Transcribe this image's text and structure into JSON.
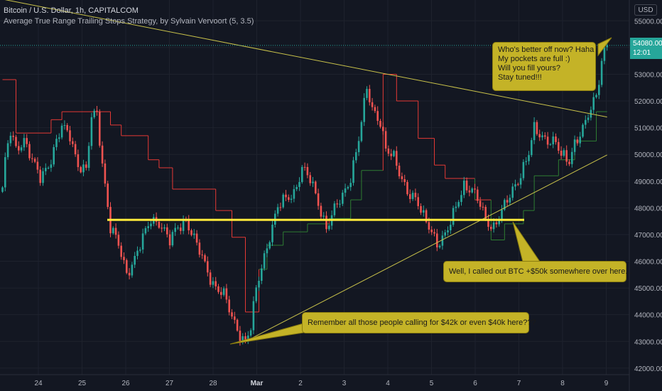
{
  "header": {
    "symbol_line": "Bitcoin / U.S. Dollar, 1h, CAPITALCOM",
    "study_line": "Average True Range Trailing Stops Strategy, by Sylvain Vervoort (5, 3.5)"
  },
  "currency_button": "USD",
  "last_price": {
    "price": "54080.00",
    "countdown": "12:01"
  },
  "annotations": {
    "top_right": [
      "Who's better off now? Haha",
      "My pockets are full :)",
      "Will you fill yours?",
      "Stay tuned!!!"
    ],
    "middle_right": "Well, I called out BTC +$50k somewhere over here...",
    "bottom": "Remember all those people calling for $42k or even $40k here???"
  },
  "colors": {
    "background": "#131722",
    "up": "#26a69a",
    "down": "#ef5350",
    "stop_red": "#e53935",
    "stop_green": "#2e7d32",
    "support_line": "#ffeb3b",
    "trend_line": "#c9c24a",
    "annotation_bg": "#c4b327"
  },
  "chart_data": {
    "type": "candlestick",
    "ylim": [
      41700,
      55700
    ],
    "ytick_values": [
      42000,
      43000,
      44000,
      45000,
      46000,
      47000,
      48000,
      49000,
      50000,
      51000,
      52000,
      53000,
      54000,
      55000
    ],
    "yticks": [
      "42000.00",
      "43000.00",
      "44000.00",
      "45000.00",
      "46000.00",
      "47000.00",
      "48000.00",
      "49000.00",
      "50000.00",
      "51000.00",
      "52000.00",
      "53000.00",
      "54000.00",
      "55000.00"
    ],
    "xticks": [
      "24",
      "25",
      "26",
      "27",
      "28",
      "Mar",
      "2",
      "3",
      "4",
      "5",
      "6",
      "7",
      "8",
      "9"
    ],
    "price_path": [
      [
        0,
        48600
      ],
      [
        1.2,
        49900
      ],
      [
        3,
        50900
      ],
      [
        5,
        50300
      ],
      [
        8,
        50500
      ],
      [
        11,
        49700
      ],
      [
        14,
        49200
      ],
      [
        18,
        49800
      ],
      [
        22,
        51000
      ],
      [
        25,
        50800
      ],
      [
        28,
        49600
      ],
      [
        31,
        49300
      ],
      [
        33,
        51400
      ],
      [
        35,
        51600
      ],
      [
        37,
        49700
      ],
      [
        40,
        47200
      ],
      [
        43,
        46600
      ],
      [
        46,
        45600
      ],
      [
        49,
        46100
      ],
      [
        52,
        46800
      ],
      [
        55,
        47600
      ],
      [
        58,
        47500
      ],
      [
        62,
        46700
      ],
      [
        65,
        47300
      ],
      [
        68,
        47600
      ],
      [
        71,
        46800
      ],
      [
        74,
        46100
      ],
      [
        78,
        45200
      ],
      [
        82,
        44700
      ],
      [
        85,
        43900
      ],
      [
        88,
        43300
      ],
      [
        90,
        43000
      ],
      [
        92,
        43500
      ],
      [
        94,
        44900
      ],
      [
        96,
        45800
      ],
      [
        99,
        47000
      ],
      [
        102,
        48000
      ],
      [
        105,
        48300
      ],
      [
        108,
        48600
      ],
      [
        111,
        49500
      ],
      [
        114,
        49000
      ],
      [
        117,
        48200
      ],
      [
        120,
        47300
      ],
      [
        123,
        47900
      ],
      [
        126,
        48400
      ],
      [
        129,
        49200
      ],
      [
        132,
        50600
      ],
      [
        134,
        51800
      ],
      [
        135,
        52400
      ],
      [
        137,
        51700
      ],
      [
        140,
        51300
      ],
      [
        142,
        50200
      ],
      [
        145,
        49800
      ],
      [
        147,
        49300
      ],
      [
        150,
        48700
      ],
      [
        153,
        48300
      ],
      [
        156,
        47600
      ],
      [
        159,
        47200
      ],
      [
        161,
        46700
      ],
      [
        164,
        46900
      ],
      [
        166,
        47400
      ],
      [
        169,
        48400
      ],
      [
        171,
        48900
      ],
      [
        174,
        48600
      ],
      [
        177,
        48100
      ],
      [
        179,
        47600
      ],
      [
        182,
        47300
      ],
      [
        186,
        48000
      ],
      [
        189,
        48700
      ],
      [
        192,
        49300
      ],
      [
        195,
        50000
      ],
      [
        197,
        50900
      ],
      [
        200,
        50700
      ],
      [
        202,
        50600
      ],
      [
        205,
        50400
      ],
      [
        207,
        49900
      ],
      [
        210,
        49800
      ],
      [
        212,
        50500
      ],
      [
        215,
        50900
      ],
      [
        217,
        51400
      ],
      [
        219,
        51900
      ],
      [
        221,
        52800
      ],
      [
        222,
        53600
      ],
      [
        223,
        53900
      ],
      [
        224,
        54080
      ]
    ],
    "stop_levels": [
      [
        0,
        52800
      ],
      [
        5,
        52800
      ],
      [
        5.01,
        50800
      ],
      [
        18,
        50800
      ],
      [
        18.01,
        51300
      ],
      [
        22,
        51300
      ],
      [
        22.01,
        51600
      ],
      [
        40,
        51600
      ],
      [
        40.01,
        51100
      ],
      [
        44,
        51100
      ],
      [
        44.01,
        50700
      ],
      [
        54,
        50700
      ],
      [
        54.01,
        49800
      ],
      [
        58,
        49800
      ],
      [
        58.01,
        49500
      ],
      [
        63,
        49500
      ],
      [
        63.01,
        48700
      ],
      [
        79,
        48700
      ],
      [
        79.01,
        47900
      ],
      [
        85,
        47900
      ],
      [
        85.01,
        46900
      ],
      [
        90,
        46900
      ],
      [
        90.01,
        44100
      ],
      [
        95,
        44100
      ],
      [
        95.01,
        45700
      ],
      [
        98,
        45700
      ],
      [
        98.01,
        46600
      ],
      [
        104,
        46600
      ],
      [
        104.01,
        47100
      ],
      [
        113,
        47100
      ],
      [
        113.01,
        47400
      ],
      [
        121,
        47400
      ],
      [
        121.01,
        47600
      ],
      [
        129,
        47600
      ],
      [
        129.01,
        48300
      ],
      [
        133,
        48300
      ],
      [
        133.01,
        49400
      ],
      [
        141,
        49400
      ],
      [
        141.01,
        53000
      ],
      [
        146,
        53000
      ],
      [
        146.01,
        52000
      ],
      [
        154,
        52000
      ],
      [
        154.01,
        50600
      ],
      [
        160,
        50600
      ],
      [
        160.01,
        49600
      ],
      [
        164,
        49600
      ],
      [
        164.01,
        49100
      ],
      [
        175,
        49100
      ],
      [
        175.01,
        48300
      ],
      [
        181,
        48300
      ],
      [
        181.01,
        46800
      ],
      [
        186,
        46800
      ],
      [
        186.01,
        47400
      ],
      [
        193,
        47400
      ],
      [
        193.01,
        47900
      ],
      [
        197,
        47900
      ],
      [
        197.01,
        49200
      ],
      [
        206,
        49200
      ],
      [
        206.01,
        49800
      ],
      [
        212,
        49800
      ],
      [
        212.01,
        50500
      ],
      [
        220,
        50500
      ],
      [
        220.01,
        51600
      ],
      [
        224,
        51600
      ]
    ],
    "support_level": 47550,
    "series": [
      {
        "name": "",
        "points": [
          [
            -30,
            56400
          ],
          [
            224,
            51400
          ]
        ]
      },
      {
        "name": "",
        "points": [
          [
            90,
            43000
          ],
          [
            224,
            49980
          ]
        ]
      }
    ]
  }
}
